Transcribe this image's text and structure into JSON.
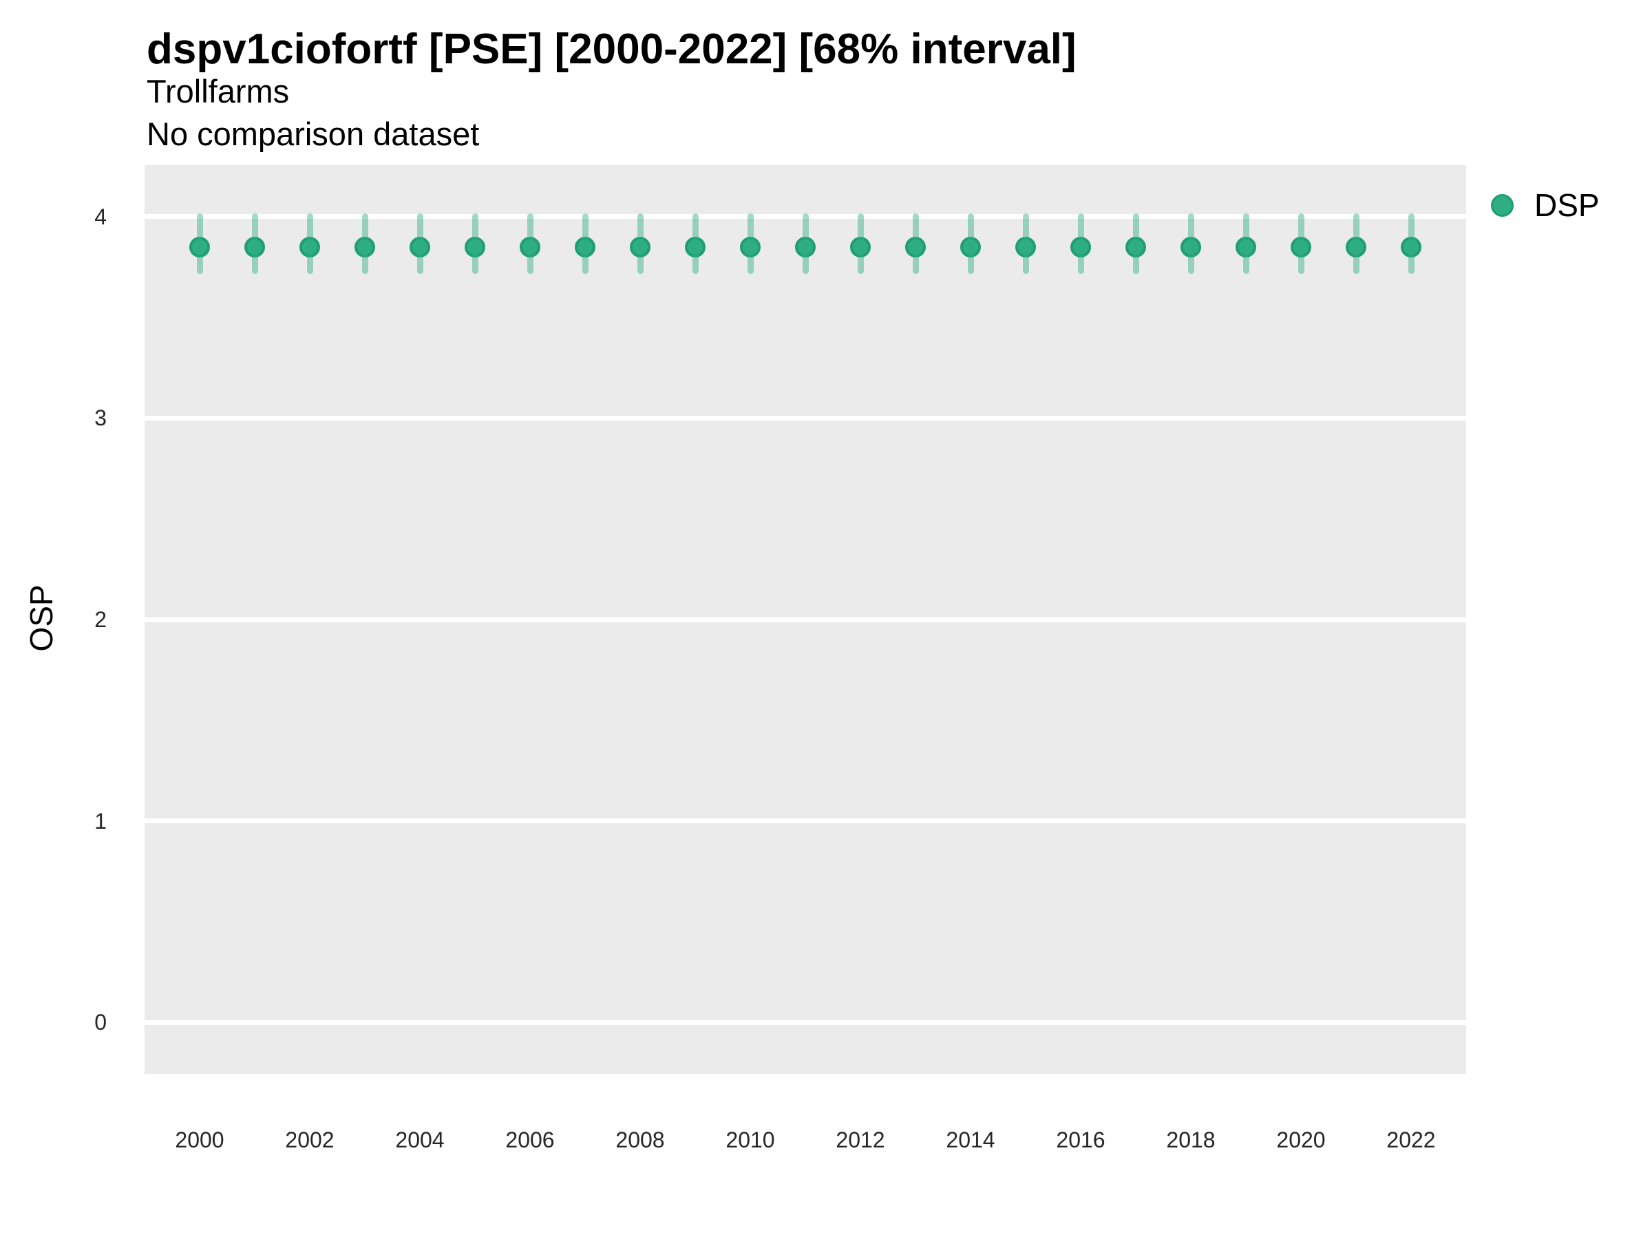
{
  "header": {
    "title": "dspv1ciofortf [PSE] [2000-2022] [68% interval]",
    "subtitle": "Trollfarms",
    "comparison_note": "No comparison dataset"
  },
  "legend": {
    "position": "right-top",
    "items": [
      {
        "label": "DSP",
        "color": "#2fad83"
      }
    ]
  },
  "chart_data": {
    "type": "scatter",
    "title": "dspv1ciofortf [PSE] [2000-2022] [68% interval]",
    "subtitle": "Trollfarms",
    "annotation": "No comparison dataset",
    "interval": "68%",
    "xlabel": "",
    "ylabel": "OSP",
    "x_ticks": [
      2000,
      2002,
      2004,
      2006,
      2008,
      2010,
      2012,
      2014,
      2016,
      2018,
      2020,
      2022
    ],
    "y_ticks": [
      0,
      1,
      2,
      3,
      4
    ],
    "xlim": [
      1999,
      2023
    ],
    "ylim": [
      -0.255,
      4.255
    ],
    "grid": "horizontal-major-only",
    "legend_position": "right-top",
    "panel_bg": "#ebebeb",
    "grid_color": "#ffffff",
    "point_color": "#2fad83",
    "point_stroke": "#1f9e72",
    "errorbar_color": "rgba(47,173,131,0.45)",
    "series": [
      {
        "name": "DSP",
        "x": [
          2000,
          2001,
          2002,
          2003,
          2004,
          2005,
          2006,
          2007,
          2008,
          2009,
          2010,
          2011,
          2012,
          2013,
          2014,
          2015,
          2016,
          2017,
          2018,
          2019,
          2020,
          2021,
          2022
        ],
        "y": [
          3.85,
          3.85,
          3.85,
          3.85,
          3.85,
          3.85,
          3.85,
          3.85,
          3.85,
          3.85,
          3.85,
          3.85,
          3.85,
          3.85,
          3.85,
          3.85,
          3.85,
          3.85,
          3.85,
          3.85,
          3.85,
          3.85,
          3.85
        ],
        "y_low": [
          3.73,
          3.73,
          3.73,
          3.73,
          3.73,
          3.73,
          3.73,
          3.73,
          3.73,
          3.73,
          3.73,
          3.73,
          3.73,
          3.73,
          3.73,
          3.73,
          3.73,
          3.73,
          3.73,
          3.73,
          3.73,
          3.73,
          3.73
        ],
        "y_high": [
          4.0,
          4.0,
          4.0,
          4.0,
          4.0,
          4.0,
          4.0,
          4.0,
          4.0,
          4.0,
          4.0,
          4.0,
          4.0,
          4.0,
          4.0,
          4.0,
          4.0,
          4.0,
          4.0,
          4.0,
          4.0,
          4.0,
          4.0
        ]
      }
    ]
  }
}
